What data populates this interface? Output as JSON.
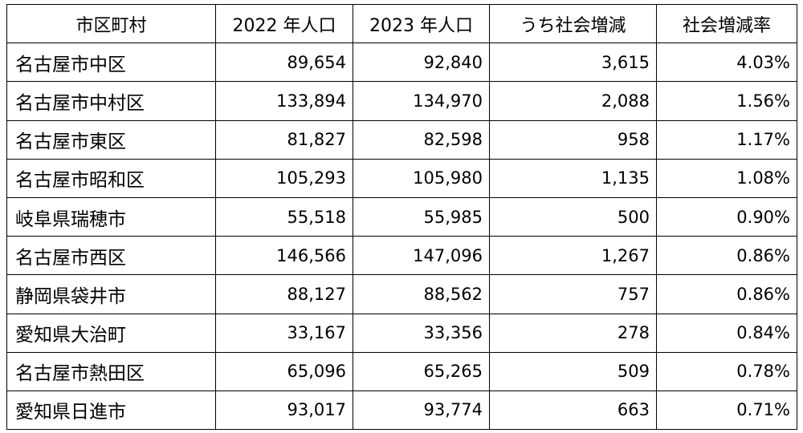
{
  "table": {
    "headers": [
      "市区町村",
      "2022 年人口",
      "2023 年人口",
      "うち社会増減",
      "社会増減率"
    ],
    "rows": [
      [
        "名古屋市中区",
        "89,654",
        "92,840",
        "3,615",
        "4.03%"
      ],
      [
        "名古屋市中村区",
        "133,894",
        "134,970",
        "2,088",
        "1.56%"
      ],
      [
        "名古屋市東区",
        "81,827",
        "82,598",
        "958",
        "1.17%"
      ],
      [
        "名古屋市昭和区",
        "105,293",
        "105,980",
        "1,135",
        "1.08%"
      ],
      [
        "岐阜県瑞穂市",
        "55,518",
        "55,985",
        "500",
        "0.90%"
      ],
      [
        "名古屋市西区",
        "146,566",
        "147,096",
        "1,267",
        "0.86%"
      ],
      [
        "静岡県袋井市",
        "88,127",
        "88,562",
        "757",
        "0.86%"
      ],
      [
        "愛知県大治町",
        "33,167",
        "33,356",
        "278",
        "0.84%"
      ],
      [
        "名古屋市熱田区",
        "65,096",
        "65,265",
        "509",
        "0.78%"
      ],
      [
        "愛知県日進市",
        "93,017",
        "93,774",
        "663",
        "0.71%"
      ]
    ]
  }
}
